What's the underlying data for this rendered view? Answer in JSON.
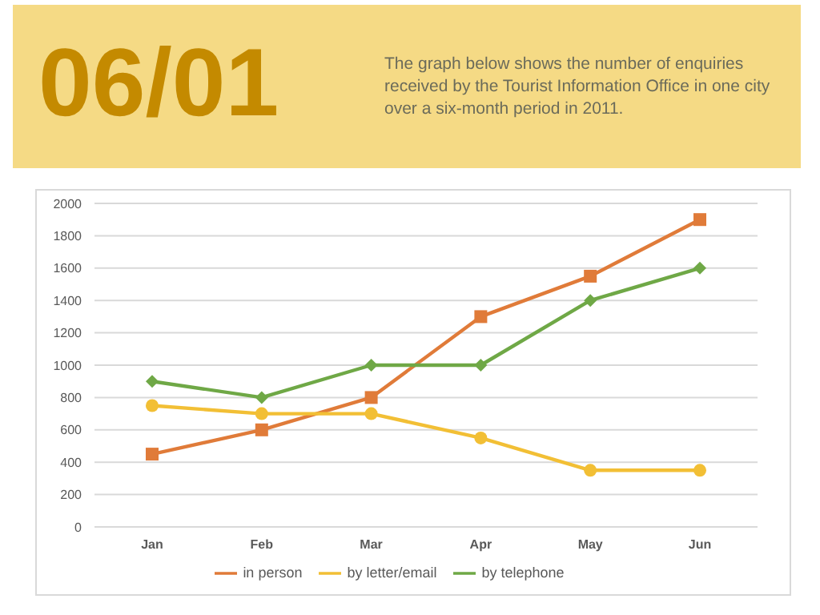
{
  "chart_data": {
    "type": "line",
    "title": "06/01",
    "subtitle": "The graph below shows the number of enquiries received by the Tourist Information Office in one city over a six-month period in 2011.",
    "categories": [
      "Jan",
      "Feb",
      "Mar",
      "Apr",
      "May",
      "Jun"
    ],
    "series": [
      {
        "name": "in person",
        "color": "#e07b39",
        "marker": "square",
        "values": [
          450,
          600,
          800,
          1300,
          1550,
          1900
        ]
      },
      {
        "name": "by letter/email",
        "color": "#f2bf35",
        "marker": "circle",
        "values": [
          750,
          700,
          700,
          550,
          350,
          350
        ]
      },
      {
        "name": "by telephone",
        "color": "#6fa846",
        "marker": "diamond",
        "values": [
          900,
          800,
          1000,
          1000,
          1400,
          1600
        ]
      }
    ],
    "ylim": [
      0,
      2000
    ],
    "yticks": [
      0,
      200,
      400,
      600,
      800,
      1000,
      1200,
      1400,
      1600,
      1800,
      2000
    ],
    "grid": "y",
    "legend": "bottom"
  }
}
